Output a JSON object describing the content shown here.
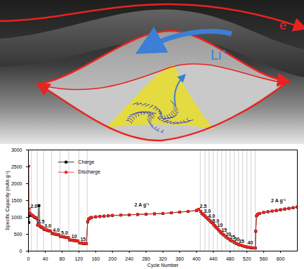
{
  "illustration": {
    "labels": {
      "ion": "Li⁺",
      "electron": "e"
    }
  },
  "chart_data": {
    "type": "line",
    "x_label": "Cycle Number",
    "y_label": "Specific Capacity (mAh g⁻¹)",
    "x": [
      1,
      2,
      3,
      5,
      8,
      11,
      14,
      17,
      20,
      22,
      25,
      28,
      31,
      34,
      37,
      40,
      44,
      48,
      52,
      56,
      60,
      64,
      68,
      72,
      76,
      80,
      85,
      90,
      95,
      98,
      102,
      106,
      110,
      114,
      118,
      122,
      126,
      130,
      134,
      138,
      141,
      143,
      146,
      150,
      160,
      170,
      180,
      190,
      200,
      220,
      240,
      260,
      280,
      300,
      320,
      340,
      360,
      380,
      400,
      405,
      410,
      413,
      416,
      419,
      422,
      425,
      428,
      431,
      434,
      437,
      440,
      443,
      446,
      449,
      452,
      455,
      458,
      461,
      465,
      470,
      475,
      480,
      485,
      490,
      495,
      500,
      505,
      510,
      515,
      520,
      525,
      530,
      535,
      540,
      541,
      543,
      546,
      550,
      560,
      570,
      580,
      590,
      600,
      610,
      620,
      630,
      640
    ],
    "series": [
      {
        "name": "Charge",
        "color": "#000000",
        "marker": "square",
        "line_style": "solid",
        "values": [
          850,
          1050,
          1100,
          1080,
          1060,
          1040,
          1010,
          990,
          970,
          770,
          1350,
          730,
          710,
          690,
          650,
          635,
          620,
          605,
          595,
          525,
          515,
          500,
          490,
          480,
          435,
          425,
          415,
          405,
          395,
          335,
          325,
          318,
          312,
          305,
          298,
          238,
          232,
          228,
          222,
          218,
          870,
          945,
          975,
          995,
          1015,
          1025,
          1035,
          1045,
          1055,
          1065,
          1075,
          1085,
          1095,
          1105,
          1115,
          1135,
          1155,
          1175,
          1205,
          1235,
          1175,
          1115,
          1085,
          1055,
          1015,
          985,
          945,
          915,
          875,
          845,
          795,
          755,
          715,
          675,
          635,
          595,
          555,
          515,
          475,
          415,
          375,
          325,
          295,
          255,
          225,
          195,
          175,
          155,
          135,
          120,
          110,
          100,
          92,
          88,
          590,
          1045,
          1095,
          1115,
          1145,
          1165,
          1185,
          1205,
          1225,
          1245,
          1265,
          1285,
          1305
        ]
      },
      {
        "name": "Discharge",
        "color": "#e8231f",
        "marker": "circle",
        "line_style": "solid",
        "values": [
          2520,
          1250,
          1150,
          1100,
          1080,
          1050,
          1020,
          1000,
          980,
          780,
          760,
          740,
          720,
          700,
          660,
          640,
          630,
          610,
          600,
          530,
          520,
          505,
          495,
          485,
          440,
          430,
          420,
          410,
          400,
          340,
          330,
          320,
          315,
          310,
          300,
          240,
          235,
          230,
          225,
          220,
          880,
          950,
          980,
          1000,
          1020,
          1030,
          1040,
          1050,
          1060,
          1070,
          1080,
          1090,
          1100,
          1110,
          1120,
          1140,
          1160,
          1180,
          1210,
          1240,
          1180,
          1120,
          1090,
          1060,
          1020,
          990,
          950,
          920,
          880,
          850,
          800,
          760,
          720,
          680,
          640,
          600,
          560,
          520,
          480,
          420,
          380,
          330,
          300,
          260,
          230,
          200,
          180,
          160,
          140,
          125,
          115,
          105,
          95,
          90,
          600,
          1050,
          1100,
          1120,
          1150,
          1170,
          1190,
          1210,
          1230,
          1250,
          1270,
          1290,
          1310
        ]
      }
    ],
    "xlim": [
      0,
      640
    ],
    "ylim": [
      0,
      3000
    ],
    "xticks": [
      0,
      40,
      80,
      120,
      160,
      200,
      240,
      280,
      320,
      360,
      400,
      440,
      480,
      520,
      560,
      600
    ],
    "yticks": [
      0,
      500,
      1000,
      1500,
      2000,
      2500,
      3000
    ],
    "legend": "top-left",
    "vlines": [
      7,
      21,
      36,
      55,
      75,
      96,
      120,
      140,
      409,
      420,
      430,
      440,
      450,
      460,
      470,
      480,
      490,
      500,
      510,
      520,
      530,
      540
    ],
    "annotations": [
      {
        "text": "2.0",
        "x": 13,
        "y": 1320
      },
      {
        "text": "2.5",
        "x": 30,
        "y": 880
      },
      {
        "text": "3.0",
        "x": 46,
        "y": 740
      },
      {
        "text": "4.0",
        "x": 66,
        "y": 630
      },
      {
        "text": "5.0",
        "x": 86,
        "y": 540
      },
      {
        "text": "10",
        "x": 109,
        "y": 440
      },
      {
        "text": "15",
        "x": 130,
        "y": 350
      },
      {
        "text": "2 A g⁻¹",
        "x": 270,
        "y": 1380
      },
      {
        "text": "2.5",
        "x": 416,
        "y": 1330
      },
      {
        "text": "3.0",
        "x": 426,
        "y": 1180
      },
      {
        "text": "4.0",
        "x": 436,
        "y": 1040
      },
      {
        "text": "5.0",
        "x": 446,
        "y": 900
      },
      {
        "text": "10",
        "x": 456,
        "y": 760
      },
      {
        "text": "15",
        "x": 466,
        "y": 620
      },
      {
        "text": "20",
        "x": 476,
        "y": 500
      },
      {
        "text": "25",
        "x": 486,
        "y": 420
      },
      {
        "text": "30",
        "x": 496,
        "y": 350
      },
      {
        "text": "35",
        "x": 507,
        "y": 290
      },
      {
        "text": "40",
        "x": 528,
        "y": 250
      },
      {
        "text": "2 A g⁻¹",
        "x": 595,
        "y": 1500
      }
    ]
  }
}
